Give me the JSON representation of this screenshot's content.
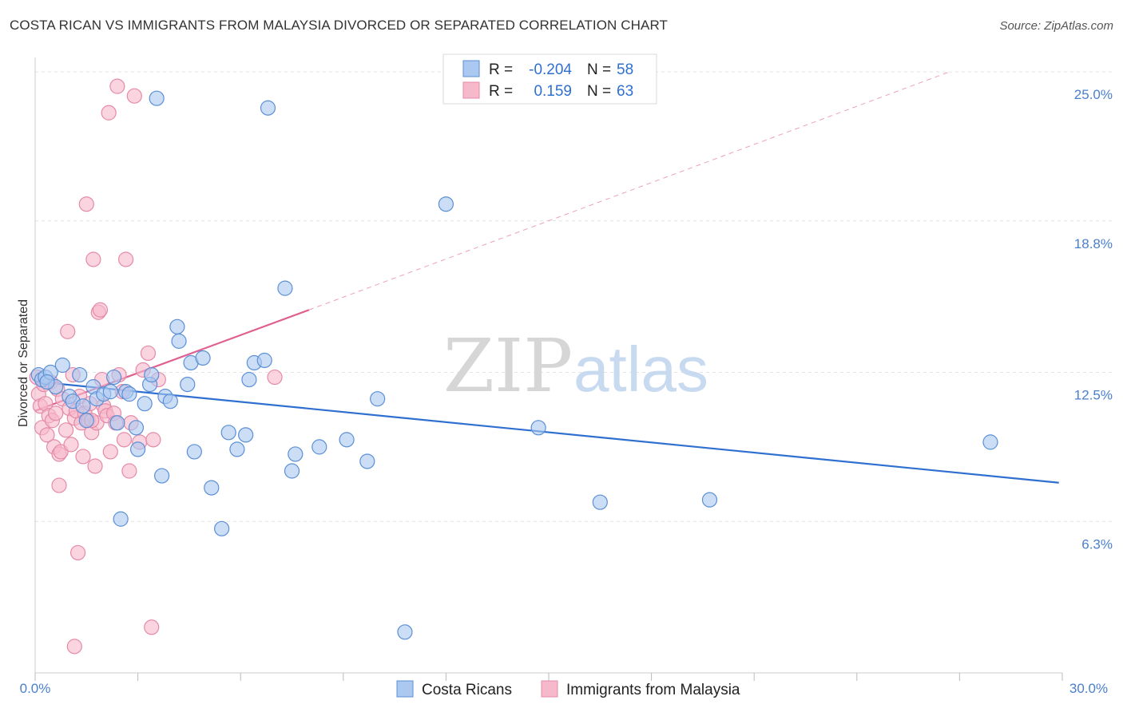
{
  "header": {
    "title": "COSTA RICAN VS IMMIGRANTS FROM MALAYSIA DIVORCED OR SEPARATED CORRELATION CHART",
    "source": "Source: ZipAtlas.com"
  },
  "watermark": {
    "zip": "ZIP",
    "atlas": "atlas"
  },
  "colors": {
    "blue_fill": "#aac8f0",
    "blue_stroke": "#5b8fd6",
    "blue_line": "#2f6fd0",
    "pink_fill": "#f6b9cc",
    "pink_stroke": "#e58aa8",
    "pink_line": "#e06090",
    "tick_text": "#4a7fd0",
    "grid": "#e4e4e4"
  },
  "chart_data": {
    "type": "scatter",
    "title": "COSTA RICAN VS IMMIGRANTS FROM MALAYSIA DIVORCED OR SEPARATED CORRELATION CHART",
    "xlabel": "",
    "ylabel": "Divorced or Separated",
    "xlim": [
      0,
      30
    ],
    "ylim": [
      0,
      25.6
    ],
    "x_tick_labels": [
      "0.0%",
      "30.0%"
    ],
    "y_ticks": [
      6.3,
      12.5,
      18.8,
      25.0
    ],
    "y_tick_labels": [
      "6.3%",
      "12.5%",
      "18.8%",
      "25.0%"
    ],
    "grid": true,
    "legend_top": [
      {
        "r_label": "R =",
        "r_value": "-0.204",
        "n_label": "N =",
        "n_value": "58"
      },
      {
        "r_label": "R =",
        "r_value": "0.159",
        "n_label": "N =",
        "n_value": "63"
      }
    ],
    "series": [
      {
        "name": "Costa Ricans",
        "trend": {
          "x": [
            0.0,
            29.9
          ],
          "y": [
            12.12,
            7.91
          ],
          "style": "solid"
        },
        "points": [
          {
            "x": 0.1,
            "y": 12.4
          },
          {
            "x": 0.2,
            "y": 12.2
          },
          {
            "x": 0.3,
            "y": 12.3
          },
          {
            "x": 0.45,
            "y": 12.5
          },
          {
            "x": 0.6,
            "y": 11.9
          },
          {
            "x": 0.8,
            "y": 12.8
          },
          {
            "x": 1.0,
            "y": 11.5
          },
          {
            "x": 1.1,
            "y": 11.3
          },
          {
            "x": 1.3,
            "y": 12.4
          },
          {
            "x": 1.4,
            "y": 11.1
          },
          {
            "x": 1.5,
            "y": 10.5
          },
          {
            "x": 1.7,
            "y": 11.9
          },
          {
            "x": 1.8,
            "y": 11.4
          },
          {
            "x": 2.0,
            "y": 11.6
          },
          {
            "x": 2.2,
            "y": 11.7
          },
          {
            "x": 2.3,
            "y": 12.3
          },
          {
            "x": 2.4,
            "y": 10.4
          },
          {
            "x": 2.5,
            "y": 6.4
          },
          {
            "x": 2.65,
            "y": 11.7
          },
          {
            "x": 2.75,
            "y": 11.6
          },
          {
            "x": 2.95,
            "y": 10.2
          },
          {
            "x": 3.0,
            "y": 9.3
          },
          {
            "x": 3.2,
            "y": 11.2
          },
          {
            "x": 3.35,
            "y": 12.0
          },
          {
            "x": 3.4,
            "y": 12.4
          },
          {
            "x": 3.55,
            "y": 23.9
          },
          {
            "x": 3.7,
            "y": 8.2
          },
          {
            "x": 3.8,
            "y": 11.5
          },
          {
            "x": 3.95,
            "y": 11.3
          },
          {
            "x": 4.15,
            "y": 14.4
          },
          {
            "x": 4.2,
            "y": 13.8
          },
          {
            "x": 4.45,
            "y": 12.0
          },
          {
            "x": 4.55,
            "y": 12.9
          },
          {
            "x": 4.65,
            "y": 9.2
          },
          {
            "x": 4.9,
            "y": 13.1
          },
          {
            "x": 5.15,
            "y": 7.7
          },
          {
            "x": 5.45,
            "y": 6.0
          },
          {
            "x": 5.65,
            "y": 10.0
          },
          {
            "x": 5.9,
            "y": 9.3
          },
          {
            "x": 6.15,
            "y": 9.9
          },
          {
            "x": 6.25,
            "y": 12.2
          },
          {
            "x": 6.4,
            "y": 12.9
          },
          {
            "x": 6.7,
            "y": 13.0
          },
          {
            "x": 6.8,
            "y": 23.5
          },
          {
            "x": 7.3,
            "y": 16.0
          },
          {
            "x": 7.5,
            "y": 8.4
          },
          {
            "x": 7.6,
            "y": 9.1
          },
          {
            "x": 8.3,
            "y": 9.4
          },
          {
            "x": 9.1,
            "y": 9.7
          },
          {
            "x": 9.7,
            "y": 8.8
          },
          {
            "x": 10.0,
            "y": 11.4
          },
          {
            "x": 10.8,
            "y": 1.7
          },
          {
            "x": 12.0,
            "y": 19.5
          },
          {
            "x": 14.7,
            "y": 10.2
          },
          {
            "x": 16.5,
            "y": 7.1
          },
          {
            "x": 19.7,
            "y": 7.2
          },
          {
            "x": 27.9,
            "y": 9.6
          },
          {
            "x": 0.35,
            "y": 12.1
          }
        ]
      },
      {
        "name": "Immigrants from Malaysia",
        "trend": {
          "x": [
            0.0,
            8.0
          ],
          "y": [
            10.9,
            15.1
          ],
          "style": "solid",
          "extend": {
            "x": [
              8.0,
              26.7
            ],
            "y": [
              15.1,
              25.0
            ],
            "style": "dashed"
          }
        },
        "points": [
          {
            "x": 0.05,
            "y": 12.3
          },
          {
            "x": 0.1,
            "y": 11.6
          },
          {
            "x": 0.15,
            "y": 11.1
          },
          {
            "x": 0.2,
            "y": 10.2
          },
          {
            "x": 0.25,
            "y": 12.0
          },
          {
            "x": 0.3,
            "y": 11.2
          },
          {
            "x": 0.35,
            "y": 9.9
          },
          {
            "x": 0.4,
            "y": 10.7
          },
          {
            "x": 0.45,
            "y": 12.1
          },
          {
            "x": 0.5,
            "y": 10.5
          },
          {
            "x": 0.55,
            "y": 9.4
          },
          {
            "x": 0.6,
            "y": 10.8
          },
          {
            "x": 0.65,
            "y": 11.8
          },
          {
            "x": 0.7,
            "y": 9.1
          },
          {
            "x": 0.75,
            "y": 9.2
          },
          {
            "x": 0.8,
            "y": 11.4
          },
          {
            "x": 0.9,
            "y": 10.1
          },
          {
            "x": 0.95,
            "y": 14.2
          },
          {
            "x": 1.0,
            "y": 11.0
          },
          {
            "x": 1.05,
            "y": 9.5
          },
          {
            "x": 1.1,
            "y": 12.4
          },
          {
            "x": 1.15,
            "y": 10.6
          },
          {
            "x": 1.2,
            "y": 10.9
          },
          {
            "x": 1.3,
            "y": 11.5
          },
          {
            "x": 1.35,
            "y": 10.4
          },
          {
            "x": 1.4,
            "y": 9.0
          },
          {
            "x": 1.45,
            "y": 10.8
          },
          {
            "x": 1.5,
            "y": 19.5
          },
          {
            "x": 1.55,
            "y": 10.5
          },
          {
            "x": 1.6,
            "y": 11.2
          },
          {
            "x": 1.65,
            "y": 10.0
          },
          {
            "x": 1.7,
            "y": 17.2
          },
          {
            "x": 1.75,
            "y": 8.6
          },
          {
            "x": 1.8,
            "y": 10.4
          },
          {
            "x": 1.85,
            "y": 15.0
          },
          {
            "x": 1.9,
            "y": 15.1
          },
          {
            "x": 1.95,
            "y": 12.2
          },
          {
            "x": 2.0,
            "y": 11.1
          },
          {
            "x": 2.05,
            "y": 10.9
          },
          {
            "x": 2.1,
            "y": 10.7
          },
          {
            "x": 2.15,
            "y": 23.3
          },
          {
            "x": 2.2,
            "y": 9.2
          },
          {
            "x": 2.3,
            "y": 10.8
          },
          {
            "x": 2.35,
            "y": 10.4
          },
          {
            "x": 2.4,
            "y": 24.4
          },
          {
            "x": 2.45,
            "y": 12.4
          },
          {
            "x": 2.55,
            "y": 11.7
          },
          {
            "x": 2.6,
            "y": 9.7
          },
          {
            "x": 2.65,
            "y": 17.2
          },
          {
            "x": 2.75,
            "y": 8.4
          },
          {
            "x": 2.8,
            "y": 10.4
          },
          {
            "x": 2.9,
            "y": 24.0
          },
          {
            "x": 3.05,
            "y": 9.6
          },
          {
            "x": 3.15,
            "y": 12.6
          },
          {
            "x": 3.3,
            "y": 13.3
          },
          {
            "x": 3.45,
            "y": 9.7
          },
          {
            "x": 3.6,
            "y": 12.2
          },
          {
            "x": 7.0,
            "y": 12.3
          },
          {
            "x": 1.25,
            "y": 5.0
          },
          {
            "x": 1.15,
            "y": 1.1
          },
          {
            "x": 3.4,
            "y": 1.9
          },
          {
            "x": 0.7,
            "y": 7.8
          },
          {
            "x": 1.65,
            "y": 10.5
          }
        ]
      }
    ]
  }
}
